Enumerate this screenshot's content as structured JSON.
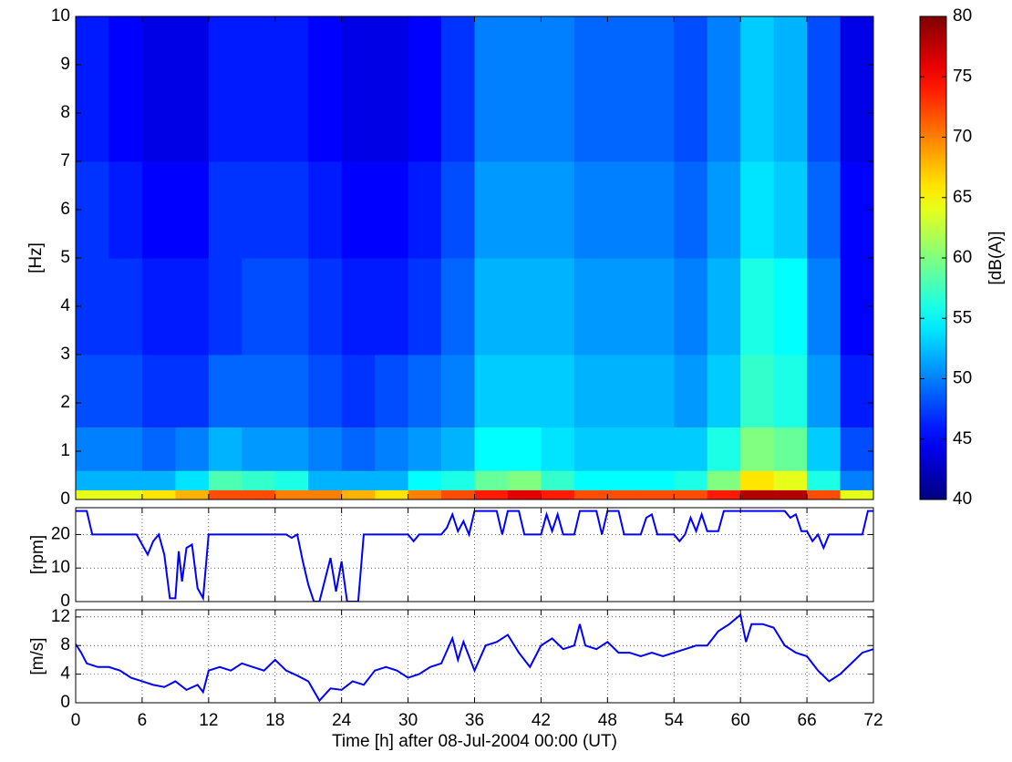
{
  "chart_data": [
    {
      "type": "heatmap",
      "colormap": "jet",
      "ylabel": "[Hz]",
      "x_edges": [
        0,
        3,
        6,
        9,
        12,
        15,
        18,
        21,
        24,
        27,
        30,
        33,
        36,
        39,
        42,
        45,
        48,
        51,
        54,
        57,
        60,
        63,
        66,
        69,
        72
      ],
      "y_edges": [
        0,
        0.2,
        0.6,
        1.5,
        3,
        5,
        7,
        10
      ],
      "values": [
        [
          64,
          64,
          66,
          68,
          72,
          72,
          70,
          70,
          68,
          66,
          70,
          72,
          74,
          76,
          74,
          72,
          72,
          72,
          72,
          74,
          78,
          78,
          72,
          64
        ],
        [
          52,
          52,
          52,
          54,
          58,
          57,
          56,
          52,
          52,
          52,
          55,
          56,
          59,
          60,
          57,
          55,
          55,
          55,
          56,
          60,
          66,
          64,
          56,
          50
        ],
        [
          50,
          50,
          49,
          50,
          52,
          51,
          51,
          50,
          49,
          50,
          51,
          52,
          55,
          55,
          54,
          53,
          53,
          53,
          53,
          56,
          60,
          59,
          53,
          48
        ],
        [
          48,
          48,
          47,
          47,
          49,
          49,
          49,
          48,
          47,
          48,
          49,
          50,
          53,
          53,
          53,
          52,
          52,
          52,
          51,
          53,
          57,
          56,
          51,
          46
        ],
        [
          47,
          47,
          46,
          46,
          47,
          48,
          48,
          47,
          46,
          46,
          47,
          49,
          52,
          52,
          52,
          51,
          51,
          51,
          50,
          52,
          56,
          55,
          50,
          45
        ],
        [
          47,
          46,
          45,
          45,
          47,
          47,
          47,
          46,
          45,
          45,
          46,
          48,
          51,
          51,
          51,
          50,
          50,
          50,
          49,
          51,
          54,
          53,
          49,
          45
        ],
        [
          46,
          45,
          44,
          44,
          46,
          46,
          46,
          45,
          44,
          44,
          45,
          47,
          50,
          50,
          50,
          49,
          49,
          49,
          48,
          50,
          53,
          52,
          48,
          44
        ]
      ],
      "xlim": [
        0,
        72
      ],
      "ylim": [
        0,
        10
      ],
      "yticks": [
        0,
        1,
        2,
        3,
        4,
        5,
        6,
        7,
        8,
        9,
        10
      ],
      "zlim": [
        40,
        80
      ],
      "colorbar_ticks": [
        40,
        45,
        50,
        55,
        60,
        65,
        70,
        75,
        80
      ],
      "colorbar_label": "[dB(A)]"
    },
    {
      "type": "line",
      "ylabel": "[rpm]",
      "color": "#0000ff",
      "grid": true,
      "x": [
        0,
        1,
        1.5,
        5.5,
        6,
        6.5,
        7,
        7.5,
        8,
        8.5,
        9,
        9.3,
        9.6,
        10,
        10.5,
        11,
        11.5,
        12,
        19,
        19.5,
        20,
        20.5,
        21,
        21.5,
        22,
        23,
        23.5,
        24,
        24.5,
        25.5,
        26,
        30,
        30.5,
        31,
        33,
        33.5,
        34,
        34.5,
        35,
        35.5,
        36,
        38,
        38.5,
        39,
        40,
        40.5,
        42,
        42.5,
        43,
        43.5,
        44,
        45,
        45.5,
        47,
        47.5,
        48,
        49,
        49.5,
        51,
        51.5,
        52,
        52.5,
        54,
        54.5,
        55,
        55.5,
        56,
        56.5,
        57,
        58,
        58.5,
        64,
        64.5,
        65,
        65.5,
        66,
        66.5,
        67,
        67.5,
        68,
        71,
        71.5,
        72
      ],
      "values": [
        27,
        27,
        20,
        20,
        17,
        14,
        18,
        20,
        14,
        1,
        1,
        15,
        6,
        16,
        17,
        4,
        1,
        20,
        20,
        19,
        20,
        12,
        5,
        0,
        0,
        13,
        3,
        12,
        0,
        0,
        20,
        20,
        18,
        20,
        20,
        22,
        26,
        21,
        24,
        20,
        27,
        27,
        20,
        27,
        27,
        20,
        20,
        26,
        21,
        26,
        20,
        20,
        27,
        27,
        20,
        27,
        27,
        20,
        20,
        25,
        26,
        20,
        20,
        18,
        20,
        25,
        21,
        26,
        21,
        21,
        27,
        27,
        25,
        26,
        21,
        21,
        18,
        20,
        16,
        20,
        20,
        27,
        27
      ],
      "xlim": [
        0,
        72
      ],
      "ylim": [
        0,
        28
      ],
      "yticks": [
        0,
        10,
        20
      ]
    },
    {
      "type": "line",
      "ylabel": "[m/s]",
      "xlabel": "Time [h] after 08-Jul-2004 00:00 (UT)",
      "color": "#0000ff",
      "grid": true,
      "x": [
        0,
        0.5,
        1,
        2,
        3,
        4,
        5,
        6,
        7,
        8,
        9,
        10,
        11,
        11.5,
        12,
        13,
        14,
        15,
        16,
        17,
        18,
        19,
        20,
        21,
        22,
        23,
        24,
        25,
        26,
        27,
        28,
        29,
        30,
        31,
        32,
        33,
        34,
        34.5,
        35,
        36,
        37,
        38,
        39,
        40,
        41,
        42,
        43,
        44,
        45,
        45.5,
        46,
        47,
        48,
        49,
        50,
        51,
        52,
        53,
        54,
        55,
        56,
        57,
        58,
        59,
        60,
        60.5,
        61,
        62,
        63,
        64,
        65,
        66,
        67,
        68,
        69,
        70,
        71,
        72
      ],
      "values": [
        8.2,
        7,
        5.5,
        5,
        5,
        4.5,
        3.5,
        3,
        2.5,
        2.2,
        3,
        1.8,
        2.5,
        1.5,
        4.5,
        5,
        4.5,
        5.5,
        5,
        4.5,
        6,
        4.5,
        3.8,
        3,
        0.3,
        2,
        1.8,
        3,
        2.5,
        4.5,
        5,
        4.5,
        3.5,
        4,
        5,
        5.5,
        9,
        6,
        8.5,
        4.5,
        8,
        8.5,
        9.5,
        7,
        5,
        8,
        9,
        7.5,
        8,
        11,
        8,
        7.5,
        8.5,
        7,
        7,
        6.5,
        7,
        6.5,
        7,
        7.5,
        8,
        8,
        10,
        11,
        12.3,
        8.5,
        11,
        11,
        10.5,
        8,
        7,
        6.5,
        4.5,
        3,
        4,
        5.5,
        7,
        7.5
      ],
      "xlim": [
        0,
        72
      ],
      "ylim": [
        0,
        13
      ],
      "yticks": [
        0,
        4,
        8,
        12
      ],
      "xticks": [
        0,
        6,
        12,
        18,
        24,
        30,
        36,
        42,
        48,
        54,
        60,
        66,
        72
      ]
    }
  ]
}
